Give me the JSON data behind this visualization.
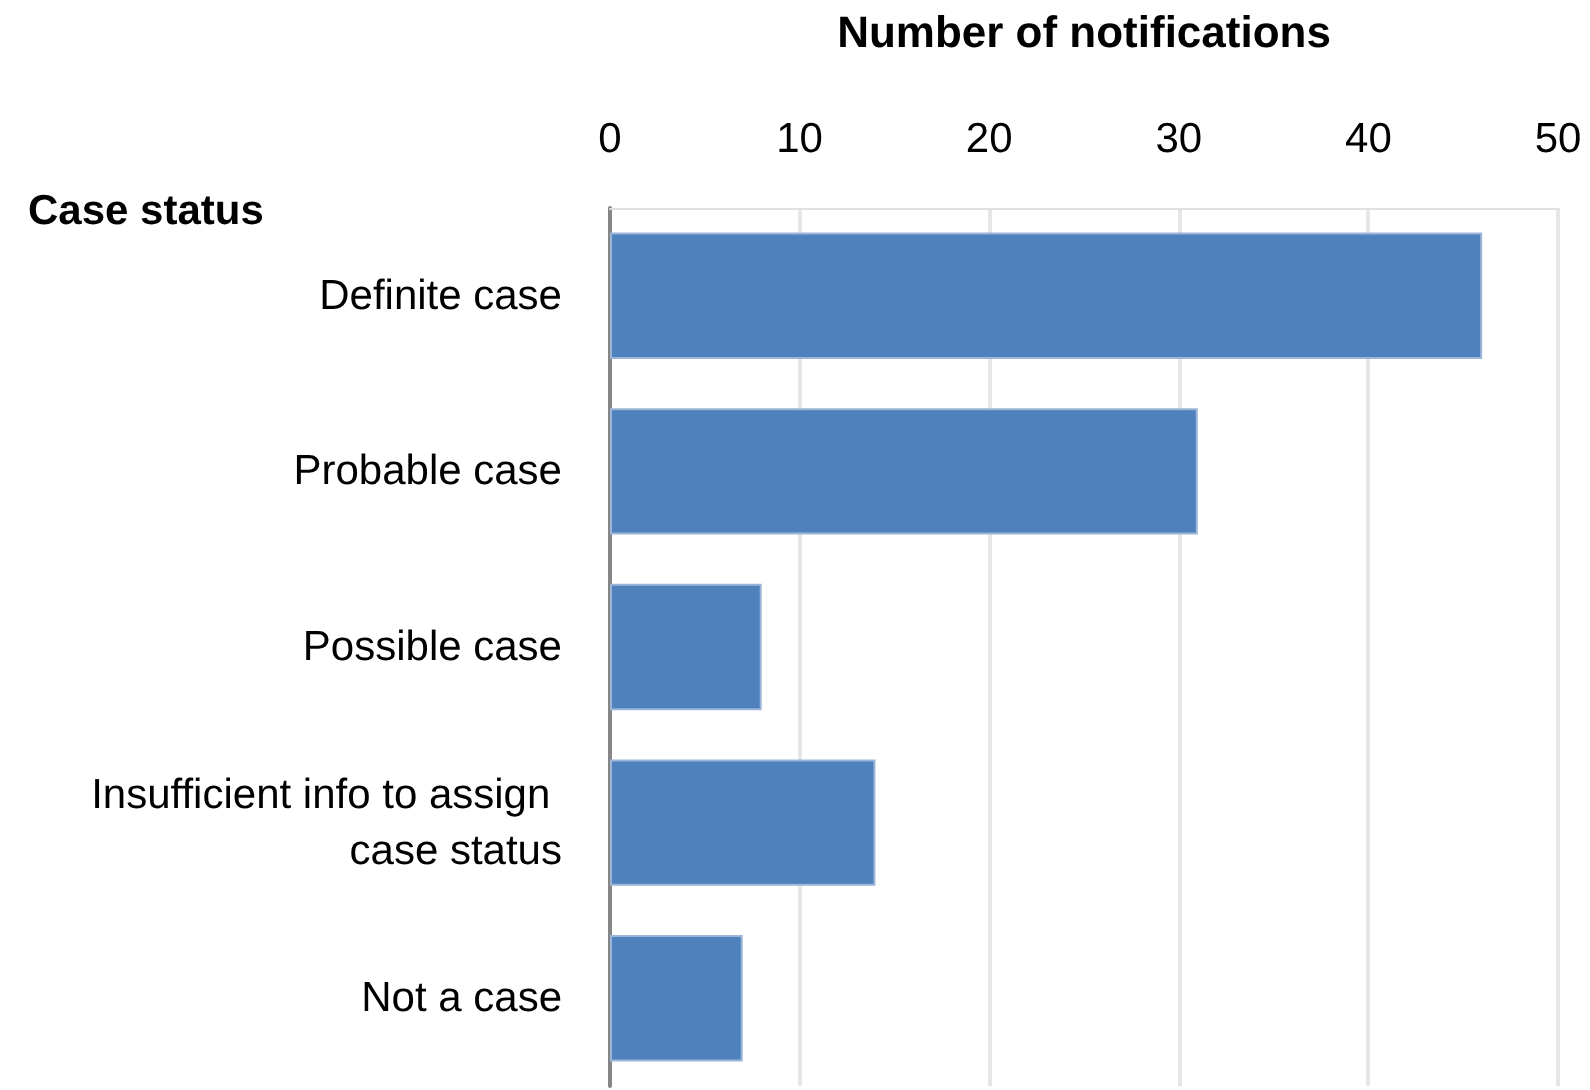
{
  "chart_data": {
    "type": "bar",
    "orientation": "horizontal",
    "xlabel": "Number of notifications",
    "ylabel": "Case status",
    "categories": [
      "Definite case",
      "Probable case",
      "Possible case",
      "Insufficient info to assign case status",
      "Not a case"
    ],
    "values": [
      46,
      31,
      8,
      14,
      7
    ],
    "color": "#4f81bd",
    "xlim": [
      0,
      50
    ],
    "xticks": [
      0,
      10,
      20,
      30,
      40,
      50
    ],
    "grid": "x"
  }
}
